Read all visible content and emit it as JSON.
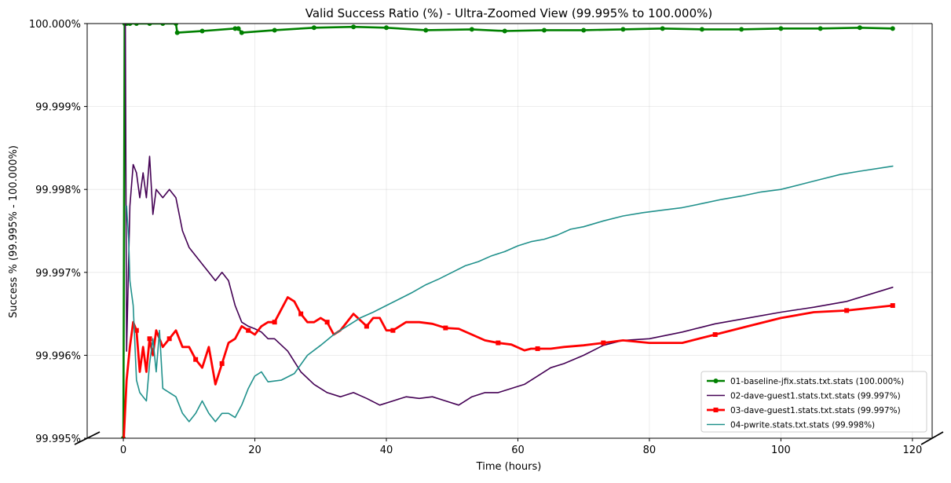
{
  "chart_data": {
    "type": "line",
    "title": "Valid Success Ratio (%) - Ultra-Zoomed View (99.995% to 100.000%)",
    "xlabel": "Time (hours)",
    "ylabel": "Success % (99.995% - 100.000%)",
    "xlim": [
      -5.5,
      123
    ],
    "ylim": [
      99.995,
      100.0
    ],
    "x_ticks": [
      0,
      20,
      40,
      60,
      80,
      100,
      120
    ],
    "x_tick_labels": [
      "0",
      "20",
      "40",
      "60",
      "80",
      "100",
      "120"
    ],
    "y_ticks": [
      99.995,
      99.996,
      99.997,
      99.998,
      99.999,
      100.0
    ],
    "y_tick_labels": [
      "99.995%",
      "99.996%",
      "99.997%",
      "99.998%",
      "99.999%",
      "100.000%"
    ],
    "grid": true,
    "legend_position": "lower-right",
    "series": [
      {
        "name": "01-baseline-jfix.stats.txt.stats (100.000%)",
        "color": "#008000",
        "marker": "circle",
        "x": [
          0,
          0.2,
          0.5,
          1,
          2,
          4,
          6,
          8,
          8.2,
          12,
          17,
          17.5,
          18,
          23,
          29,
          35,
          40,
          46,
          53,
          58,
          64,
          70,
          76,
          82,
          88,
          94,
          100,
          106,
          112,
          117
        ],
        "y": [
          99.995,
          100.0,
          100.0,
          100.0,
          100.0,
          100.0,
          100.0,
          100.0,
          99.99989,
          99.99991,
          99.99994,
          99.99994,
          99.99989,
          99.99992,
          99.99995,
          99.99996,
          99.99995,
          99.99992,
          99.99993,
          99.99991,
          99.99992,
          99.99992,
          99.99993,
          99.99994,
          99.99993,
          99.99993,
          99.99994,
          99.99994,
          99.99995,
          99.99994
        ]
      },
      {
        "name": "02-dave-guest1.stats.txt.stats (99.997%)",
        "color": "#440154",
        "marker": "none",
        "x": [
          0.3,
          0.5,
          1,
          1.5,
          2,
          2.5,
          3,
          3.5,
          4,
          4.5,
          5,
          6,
          7,
          8,
          9,
          10,
          11,
          12,
          13,
          14,
          15,
          16,
          17,
          18,
          19,
          20,
          21,
          22,
          23,
          25,
          27,
          29,
          31,
          33,
          35,
          37,
          39,
          41,
          43,
          45,
          47,
          49,
          51,
          53,
          55,
          57,
          59,
          61,
          63,
          65,
          67,
          70,
          73,
          76,
          80,
          85,
          90,
          95,
          100,
          105,
          110,
          117
        ],
        "y": [
          100.0,
          99.99605,
          99.9978,
          99.9983,
          99.9982,
          99.9979,
          99.9982,
          99.9979,
          99.9984,
          99.9977,
          99.998,
          99.9979,
          99.998,
          99.9979,
          99.9975,
          99.9973,
          99.9972,
          99.9971,
          99.997,
          99.9969,
          99.997,
          99.9969,
          99.9966,
          99.9964,
          99.99635,
          99.99632,
          99.99628,
          99.9962,
          99.9962,
          99.99605,
          99.9958,
          99.99565,
          99.99555,
          99.9955,
          99.99555,
          99.99548,
          99.9954,
          99.99545,
          99.9955,
          99.99548,
          99.9955,
          99.99545,
          99.9954,
          99.9955,
          99.99555,
          99.99555,
          99.9956,
          99.99565,
          99.99575,
          99.99585,
          99.9959,
          99.996,
          99.99612,
          99.99618,
          99.9962,
          99.99628,
          99.99638,
          99.99645,
          99.99652,
          99.99658,
          99.99665,
          99.99682
        ]
      },
      {
        "name": "03-dave-guest1.stats.txt.stats (99.997%)",
        "color": "#ff0000",
        "marker": "square",
        "x": [
          0,
          0.5,
          1,
          1.5,
          2,
          2.5,
          3,
          3.5,
          4,
          4.5,
          5,
          6,
          7,
          8,
          9,
          10,
          11,
          12,
          13,
          14,
          15,
          16,
          17,
          18,
          19,
          20,
          21,
          22,
          23,
          24,
          25,
          26,
          27,
          28,
          29,
          30,
          31,
          32,
          33,
          35,
          37,
          38,
          39,
          40,
          41,
          43,
          45,
          47,
          49,
          51,
          53,
          55,
          57,
          59,
          61,
          62,
          63,
          65,
          67,
          70,
          73,
          76,
          80,
          85,
          90,
          95,
          100,
          105,
          110,
          117
        ],
        "y": [
          99.9949,
          99.9957,
          99.9961,
          99.9964,
          99.9963,
          99.9958,
          99.9961,
          99.9958,
          99.9962,
          99.996,
          99.9963,
          99.9961,
          99.9962,
          99.9963,
          99.9961,
          99.9961,
          99.99595,
          99.99585,
          99.9961,
          99.99565,
          99.9959,
          99.99615,
          99.9962,
          99.99635,
          99.9963,
          99.99625,
          99.99635,
          99.9964,
          99.9964,
          99.99655,
          99.9967,
          99.99665,
          99.9965,
          99.9964,
          99.9964,
          99.99645,
          99.9964,
          99.99625,
          99.9963,
          99.9965,
          99.99635,
          99.99645,
          99.99645,
          99.9963,
          99.9963,
          99.9964,
          99.9964,
          99.99638,
          99.99633,
          99.99632,
          99.99625,
          99.99618,
          99.99615,
          99.99613,
          99.99606,
          99.99608,
          99.99608,
          99.99608,
          99.9961,
          99.99612,
          99.99615,
          99.99618,
          99.99615,
          99.99615,
          99.99625,
          99.99635,
          99.99645,
          99.99652,
          99.99654,
          99.9966
        ]
      },
      {
        "name": "04-pwrite.stats.txt.stats (99.998%)",
        "color": "#21918c",
        "marker": "none",
        "x": [
          0.5,
          0.8,
          1,
          1.5,
          2,
          2.5,
          3,
          3.5,
          4,
          4.5,
          5,
          5.5,
          6,
          7,
          8,
          9,
          10,
          11,
          12,
          13,
          14,
          15,
          16,
          17,
          18,
          19,
          20,
          21,
          22,
          24,
          26,
          28,
          30,
          32,
          34,
          36,
          38,
          40,
          42,
          44,
          46,
          48,
          50,
          52,
          54,
          56,
          58,
          60,
          62,
          64,
          66,
          68,
          70,
          73,
          76,
          79,
          82,
          85,
          88,
          91,
          94,
          97,
          100,
          103,
          106,
          109,
          112,
          117
        ],
        "y": [
          99.9978,
          99.9974,
          99.9969,
          99.9966,
          99.9957,
          99.99555,
          99.9955,
          99.99545,
          99.9959,
          99.9962,
          99.9958,
          99.9963,
          99.9956,
          99.99555,
          99.9955,
          99.9953,
          99.9952,
          99.9953,
          99.99545,
          99.9953,
          99.9952,
          99.9953,
          99.9953,
          99.99525,
          99.9954,
          99.9956,
          99.99575,
          99.9958,
          99.99568,
          99.9957,
          99.99578,
          99.996,
          99.99612,
          99.99625,
          99.99635,
          99.99645,
          99.99652,
          99.9966,
          99.99668,
          99.99676,
          99.99685,
          99.99692,
          99.997,
          99.99708,
          99.99713,
          99.9972,
          99.99725,
          99.99732,
          99.99737,
          99.9974,
          99.99745,
          99.99752,
          99.99755,
          99.99762,
          99.99768,
          99.99772,
          99.99775,
          99.99778,
          99.99783,
          99.99788,
          99.99792,
          99.99797,
          99.998,
          99.99806,
          99.99812,
          99.99818,
          99.99822,
          99.99828
        ]
      }
    ]
  }
}
